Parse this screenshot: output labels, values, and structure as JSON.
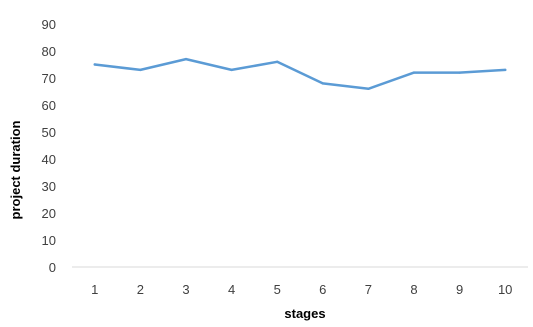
{
  "chart_data": {
    "type": "line",
    "xlabel": "stages",
    "ylabel": "project duration",
    "x": [
      1,
      2,
      3,
      4,
      5,
      6,
      7,
      8,
      9,
      10
    ],
    "series": [
      {
        "values": [
          75,
          73,
          77,
          73,
          76,
          68,
          66,
          72,
          72,
          73
        ]
      }
    ],
    "ylim": [
      0,
      90
    ],
    "yticks": [
      0,
      10,
      20,
      30,
      40,
      50,
      60,
      70,
      80,
      90
    ],
    "grid": false,
    "legend": "none",
    "colors": {
      "line": "#5b9bd5",
      "axis": "#d9d9d9",
      "text": "#404040"
    }
  }
}
